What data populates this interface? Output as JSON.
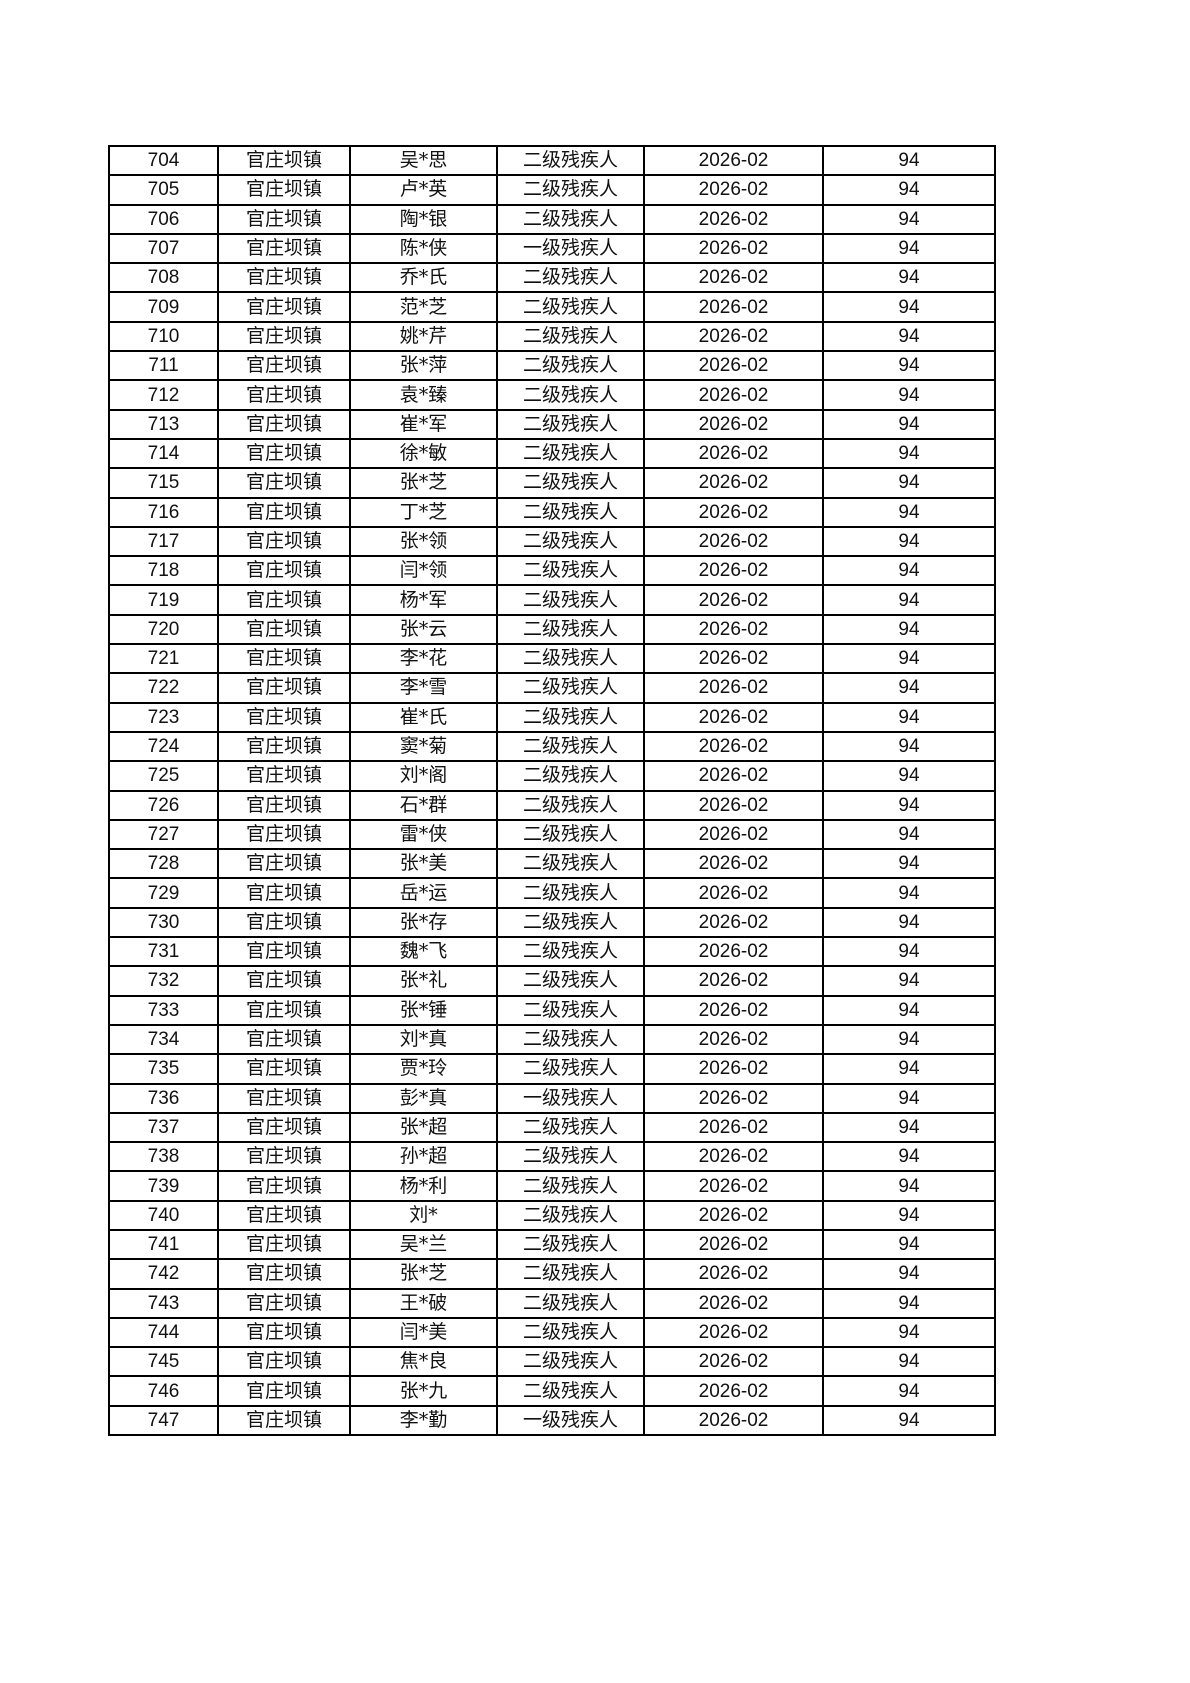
{
  "table": {
    "town": "官庄坝镇",
    "month": "2026-02",
    "amount": "94",
    "rows": [
      [
        "704",
        "吴*思",
        "二级残疾人"
      ],
      [
        "705",
        "卢*英",
        "二级残疾人"
      ],
      [
        "706",
        "陶*银",
        "二级残疾人"
      ],
      [
        "707",
        "陈*侠",
        "一级残疾人"
      ],
      [
        "708",
        "乔*氏",
        "二级残疾人"
      ],
      [
        "709",
        "范*芝",
        "二级残疾人"
      ],
      [
        "710",
        "姚*芹",
        "二级残疾人"
      ],
      [
        "711",
        "张*萍",
        "二级残疾人"
      ],
      [
        "712",
        "袁*臻",
        "二级残疾人"
      ],
      [
        "713",
        "崔*军",
        "二级残疾人"
      ],
      [
        "714",
        "徐*敏",
        "二级残疾人"
      ],
      [
        "715",
        "张*芝",
        "二级残疾人"
      ],
      [
        "716",
        "丁*芝",
        "二级残疾人"
      ],
      [
        "717",
        "张*领",
        "二级残疾人"
      ],
      [
        "718",
        "闫*领",
        "二级残疾人"
      ],
      [
        "719",
        "杨*军",
        "二级残疾人"
      ],
      [
        "720",
        "张*云",
        "二级残疾人"
      ],
      [
        "721",
        "李*花",
        "二级残疾人"
      ],
      [
        "722",
        "李*雪",
        "二级残疾人"
      ],
      [
        "723",
        "崔*氏",
        "二级残疾人"
      ],
      [
        "724",
        "窦*菊",
        "二级残疾人"
      ],
      [
        "725",
        "刘*阁",
        "二级残疾人"
      ],
      [
        "726",
        "石*群",
        "二级残疾人"
      ],
      [
        "727",
        "雷*侠",
        "二级残疾人"
      ],
      [
        "728",
        "张*美",
        "二级残疾人"
      ],
      [
        "729",
        "岳*运",
        "二级残疾人"
      ],
      [
        "730",
        "张*存",
        "二级残疾人"
      ],
      [
        "731",
        "魏*飞",
        "二级残疾人"
      ],
      [
        "732",
        "张*礼",
        "二级残疾人"
      ],
      [
        "733",
        "张*锤",
        "二级残疾人"
      ],
      [
        "734",
        "刘*真",
        "二级残疾人"
      ],
      [
        "735",
        "贾*玲",
        "二级残疾人"
      ],
      [
        "736",
        "彭*真",
        "一级残疾人"
      ],
      [
        "737",
        "张*超",
        "二级残疾人"
      ],
      [
        "738",
        "孙*超",
        "二级残疾人"
      ],
      [
        "739",
        "杨*利",
        "二级残疾人"
      ],
      [
        "740",
        "刘*",
        "二级残疾人"
      ],
      [
        "741",
        "吴*兰",
        "二级残疾人"
      ],
      [
        "742",
        "张*芝",
        "二级残疾人"
      ],
      [
        "743",
        "王*破",
        "二级残疾人"
      ],
      [
        "744",
        "闫*美",
        "二级残疾人"
      ],
      [
        "745",
        "焦*良",
        "二级残疾人"
      ],
      [
        "746",
        "张*九",
        "二级残疾人"
      ],
      [
        "747",
        "李*勤",
        "一级残疾人"
      ]
    ]
  }
}
